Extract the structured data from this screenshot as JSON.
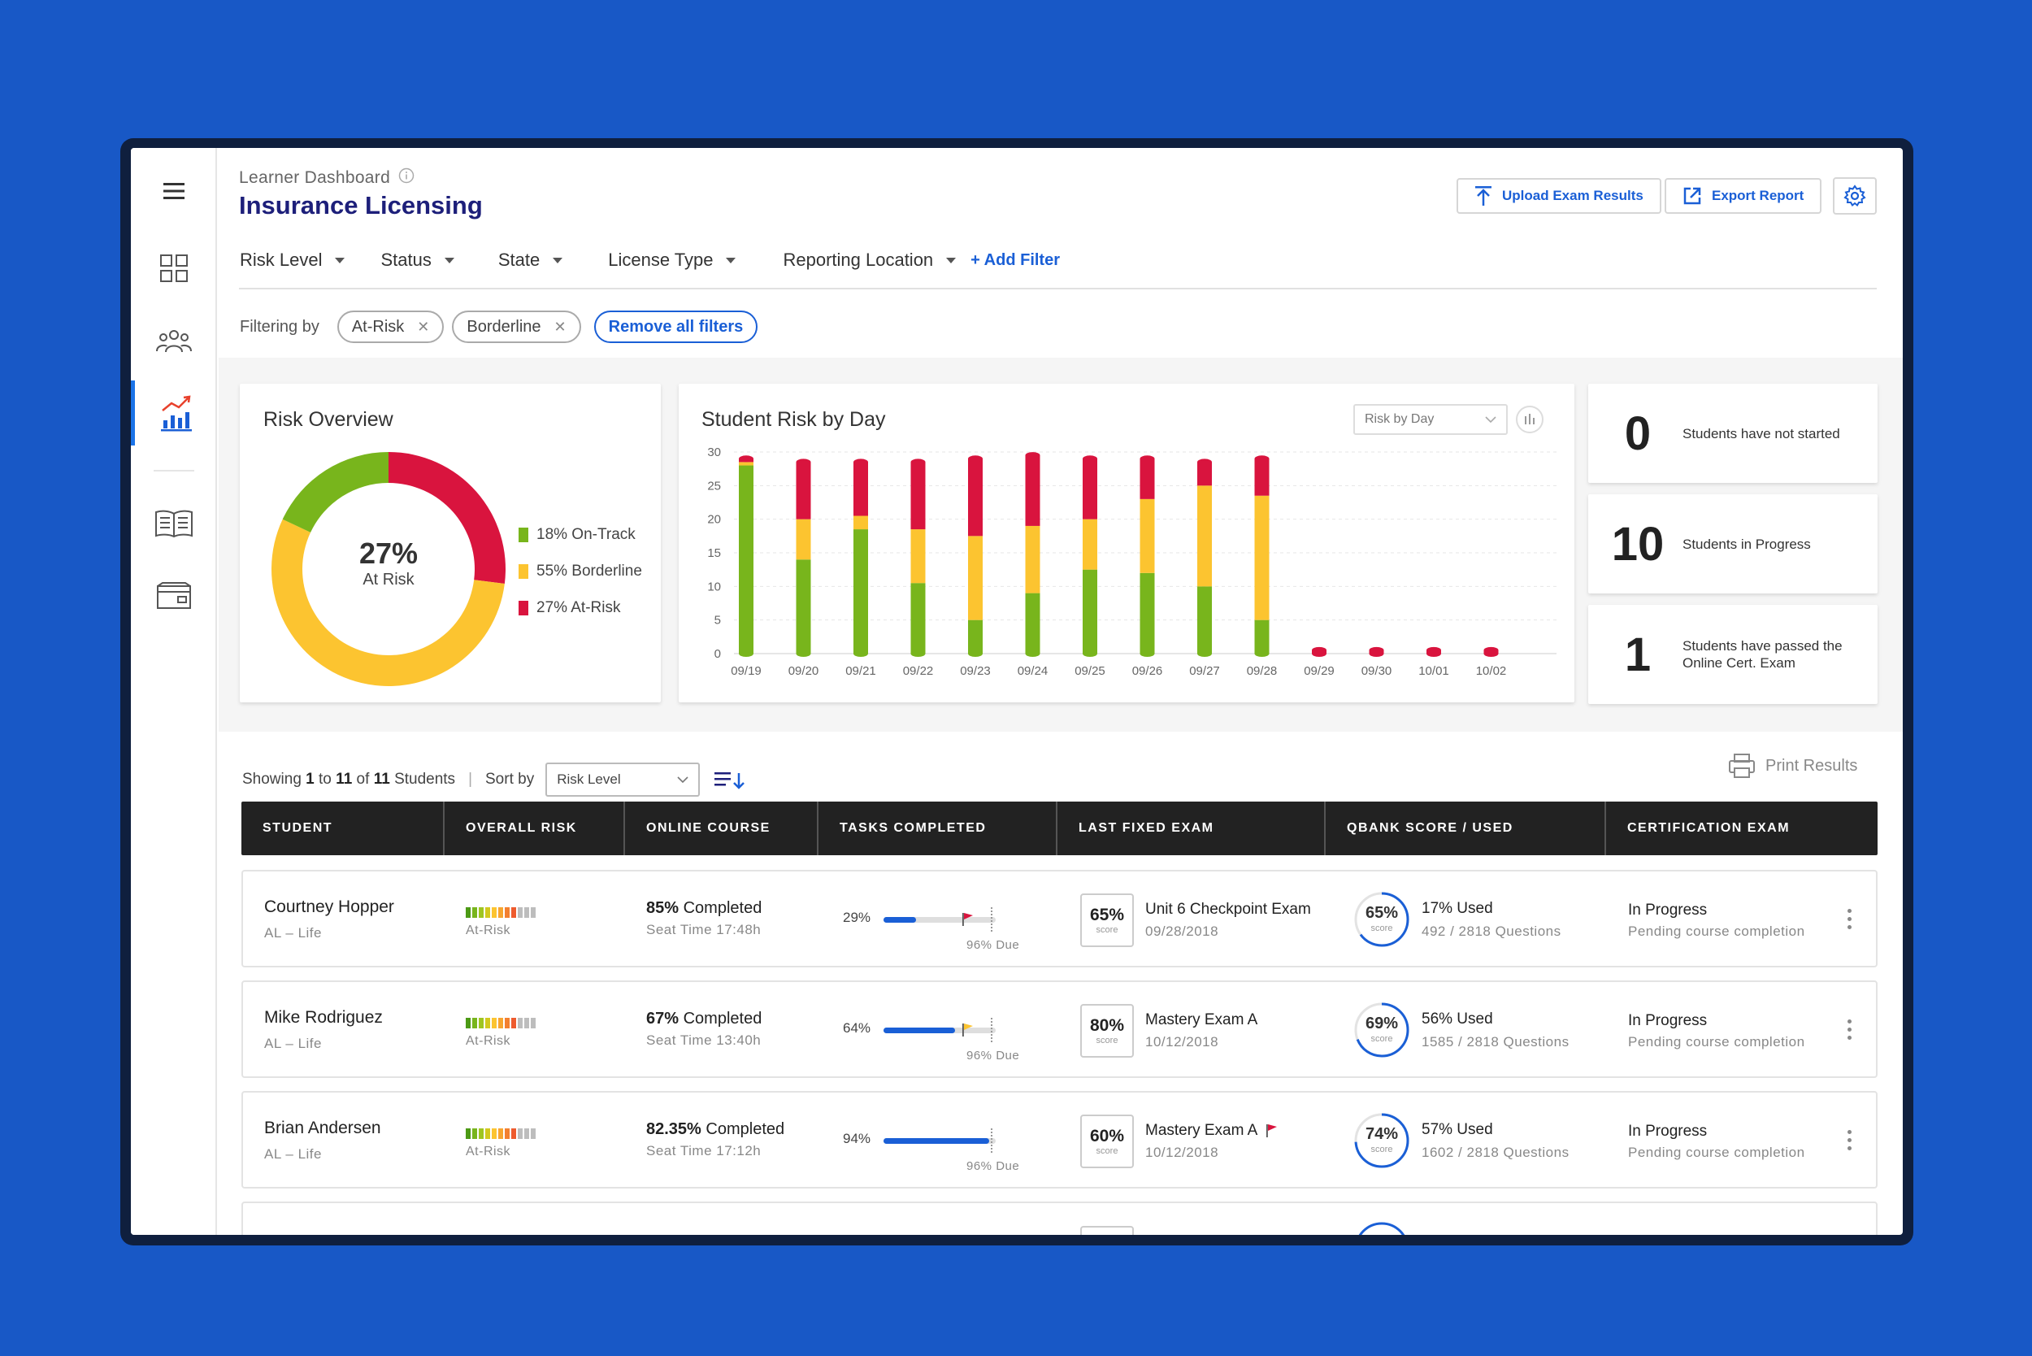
{
  "header": {
    "breadcrumb": "Learner Dashboard",
    "title": "Insurance Licensing",
    "upload_label": "Upload Exam Results",
    "export_label": "Export Report"
  },
  "filters": {
    "dropdowns": [
      "Risk Level",
      "Status",
      "State",
      "License Type",
      "Reporting Location"
    ],
    "add_filter": "+ Add Filter",
    "filtering_by": "Filtering by",
    "chips": [
      "At-Risk",
      "Borderline"
    ],
    "remove_all": "Remove all filters"
  },
  "risk_overview": {
    "title": "Risk Overview",
    "center_value": "27%",
    "center_label": "At Risk",
    "legend": [
      {
        "label": "18% On-Track",
        "color": "#78b51c"
      },
      {
        "label": "55% Borderline",
        "color": "#fcc430"
      },
      {
        "label": "27% At-Risk",
        "color": "#d9143e"
      }
    ]
  },
  "chart_data": {
    "type": "bar",
    "title": "Student Risk by Day",
    "categories": [
      "09/19",
      "09/20",
      "09/21",
      "09/22",
      "09/23",
      "09/24",
      "09/25",
      "09/26",
      "09/27",
      "09/28",
      "09/29",
      "09/30",
      "10/01",
      "10/02"
    ],
    "series": [
      {
        "name": "On-Track",
        "color": "#78b51c",
        "values": [
          28,
          14,
          18.5,
          10.5,
          5,
          9,
          12.5,
          12,
          10,
          5,
          0,
          0,
          0,
          0
        ]
      },
      {
        "name": "Borderline",
        "color": "#fcc430",
        "values": [
          0.5,
          6,
          2,
          8,
          12.5,
          10,
          7.5,
          11,
          15,
          18.5,
          0,
          0,
          0,
          0
        ]
      },
      {
        "name": "At-Risk",
        "color": "#d9143e",
        "values": [
          0.5,
          8.5,
          8,
          10,
          11.5,
          10.5,
          9,
          6,
          3.5,
          5.5,
          0.5,
          0.5,
          0.5,
          0.5
        ]
      }
    ],
    "ylim": [
      0,
      30
    ],
    "yticks": [
      "30",
      "25",
      "20",
      "15",
      "10",
      "5",
      "0"
    ],
    "dropdown": "Risk by Day"
  },
  "donut_data": {
    "on_track": 18,
    "borderline": 55,
    "at_risk": 27
  },
  "stats": [
    {
      "value": "0",
      "label": "Students have not started"
    },
    {
      "value": "10",
      "label": "Students in Progress"
    },
    {
      "value": "1",
      "label": "Students have passed the Online Cert. Exam"
    }
  ],
  "list": {
    "showing_prefix": "Showing",
    "from": "1",
    "to_word": "to",
    "to": "11",
    "of_word": "of",
    "total": "11",
    "suffix": "Students",
    "sort_label": "Sort by",
    "sort_value": "Risk Level",
    "print_label": "Print Results"
  },
  "columns": [
    "STUDENT",
    "OVERALL RISK",
    "ONLINE COURSE",
    "TASKS COMPLETED",
    "LAST FIXED EXAM",
    "QBANK SCORE / USED",
    "CERTIFICATION EXAM"
  ],
  "rows": [
    {
      "name": "Courtney Hopper",
      "sub": "AL – Life",
      "risk": "At-Risk",
      "course_pct": "85%",
      "course_word": "Completed",
      "seat": "Seat Time 17:48h",
      "tasks": "29%",
      "tasks_fraction": 0.29,
      "due": "96% Due",
      "flag_color": "#d9143e",
      "score": "65%",
      "score_word": "score",
      "exam": "Unit 6 Checkpoint Exam",
      "exam_date": "09/28/2018",
      "exam_flag": "",
      "qbank": "65%",
      "qbank_word": "score",
      "qbank_fraction": 0.65,
      "used": "17% Used",
      "questions": "492 / 2818 Questions",
      "cert": "In Progress",
      "cert_sub": "Pending course completion"
    },
    {
      "name": "Mike Rodriguez",
      "sub": "AL – Life",
      "risk": "At-Risk",
      "course_pct": "67%",
      "course_word": "Completed",
      "seat": "Seat Time 13:40h",
      "tasks": "64%",
      "tasks_fraction": 0.64,
      "due": "96% Due",
      "flag_color": "#fcc430",
      "score": "80%",
      "score_word": "score",
      "exam": "Mastery Exam A",
      "exam_date": "10/12/2018",
      "exam_flag": "",
      "qbank": "69%",
      "qbank_word": "score",
      "qbank_fraction": 0.69,
      "used": "56% Used",
      "questions": "1585 / 2818 Questions",
      "cert": "In Progress",
      "cert_sub": "Pending course completion"
    },
    {
      "name": "Brian Andersen",
      "sub": "AL – Life",
      "risk": "At-Risk",
      "course_pct": "82.35%",
      "course_word": "Completed",
      "seat": "Seat Time 17:12h",
      "tasks": "94%",
      "tasks_fraction": 0.94,
      "due": "96% Due",
      "flag_color": "",
      "score": "60%",
      "score_word": "score",
      "exam": "Mastery Exam A",
      "exam_date": "10/12/2018",
      "exam_flag": "#d9143e",
      "qbank": "74%",
      "qbank_word": "score",
      "qbank_fraction": 0.74,
      "used": "57% Used",
      "questions": "1602 / 2818 Questions",
      "cert": "In Progress",
      "cert_sub": "Pending course completion"
    }
  ]
}
